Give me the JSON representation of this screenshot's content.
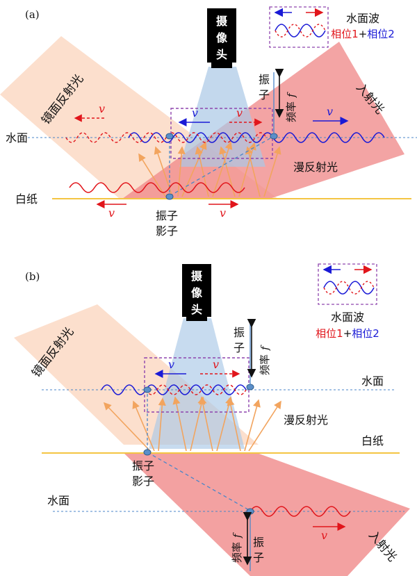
{
  "panel_a": {
    "tag": "(a)",
    "camera": [
      "摄",
      "像",
      "头"
    ],
    "legend": {
      "title": "水面波",
      "phase1": "相位1",
      "plus": "+",
      "phase2": "相位2"
    },
    "labels": {
      "mirror_reflection": "镜面反射光",
      "incident": "入射光",
      "vibrator_1": "振",
      "vibrator_2": "子",
      "frequency": "频率",
      "f": "f",
      "water": "水面",
      "diffuse": "漫反射光",
      "paper": "白纸",
      "shadow_1": "振子",
      "shadow_2": "影子"
    },
    "velocity": "v"
  },
  "panel_b": {
    "tag": "(b)",
    "camera": [
      "摄",
      "像",
      "头"
    ],
    "legend": {
      "title": "水面波",
      "phase1": "相位1",
      "plus": "+",
      "phase2": "相位2"
    },
    "labels": {
      "mirror_reflection": "镜面反射光",
      "incident": "入射光",
      "vibrator_1": "振",
      "vibrator_2": "子",
      "frequency": "频率",
      "f": "f",
      "water_top": "水面",
      "water_bottom": "水面",
      "diffuse": "漫反射光",
      "paper": "白纸",
      "shadow_1": "振子",
      "shadow_2": "影子"
    },
    "velocity": "v"
  },
  "colors": {
    "red": "#e1151b",
    "blue": "#1a1ad6",
    "incident_fill": "#f08a8a",
    "mirror_fill": "#fbd9c4",
    "camera_cone": "#a9c7e6",
    "diffuse_ray": "#f2a45e",
    "paper_line": "#f4c542",
    "water_line": "#4a86c8",
    "box_border": "#8e44ad",
    "dot": "#5b8fc9"
  }
}
